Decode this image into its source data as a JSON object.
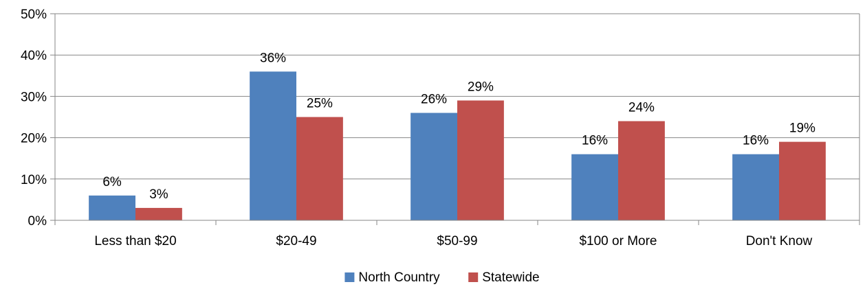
{
  "chart_data": {
    "type": "bar",
    "title": "",
    "xlabel": "",
    "ylabel": "",
    "categories": [
      "Less than $20",
      "$20-49",
      "$50-99",
      "$100 or More",
      "Don't Know"
    ],
    "series": [
      {
        "name": "North Country",
        "color": "#4F81BD",
        "values": [
          6,
          36,
          26,
          16,
          16
        ],
        "labels": [
          "6%",
          "36%",
          "26%",
          "16%",
          "16%"
        ]
      },
      {
        "name": "Statewide",
        "color": "#C0504D",
        "values": [
          3,
          25,
          29,
          24,
          19
        ],
        "labels": [
          "3%",
          "25%",
          "29%",
          "24%",
          "19%"
        ]
      }
    ],
    "ylim": [
      0,
      50
    ],
    "yticks": [
      0,
      10,
      20,
      30,
      40,
      50
    ],
    "ytick_labels": [
      "0%",
      "10%",
      "20%",
      "30%",
      "40%",
      "50%"
    ],
    "grid": true,
    "legend_position": "bottom"
  }
}
